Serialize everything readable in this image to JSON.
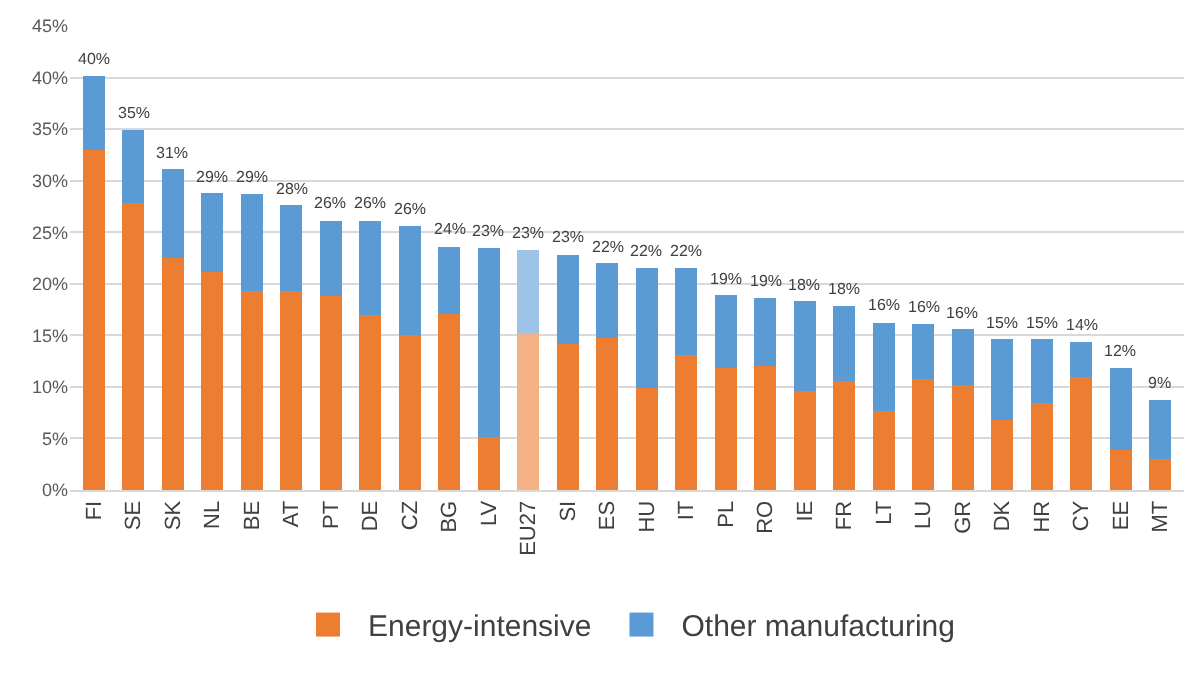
{
  "chart_data": {
    "type": "bar",
    "stacked": true,
    "categories": [
      "FI",
      "SE",
      "SK",
      "NL",
      "BE",
      "AT",
      "PT",
      "DE",
      "CZ",
      "BG",
      "LV",
      "EU27",
      "SI",
      "ES",
      "HU",
      "IT",
      "PL",
      "RO",
      "IE",
      "FR",
      "LT",
      "LU",
      "GR",
      "DK",
      "HR",
      "CY",
      "EE",
      "MT"
    ],
    "series": [
      {
        "name": "Energy-intensive",
        "color": "#ed7d31",
        "colors": [
          null,
          null,
          null,
          null,
          null,
          null,
          null,
          null,
          null,
          null,
          null,
          "#f4b183",
          null,
          null,
          null,
          null,
          null,
          null,
          null,
          null,
          null,
          null,
          null,
          null,
          null,
          null,
          null,
          null
        ],
        "values": [
          33,
          27.8,
          22.5,
          21.1,
          19.3,
          19.3,
          18.8,
          17,
          15,
          17.1,
          5.1,
          15.2,
          14.2,
          14.7,
          9.9,
          13.1,
          11.8,
          12,
          9.6,
          10.6,
          7.7,
          10.8,
          10.2,
          6.8,
          8.4,
          11,
          3.9,
          3
        ]
      },
      {
        "name": "Other manufacturing",
        "color": "#5b9bd5",
        "colors": [
          null,
          null,
          null,
          null,
          null,
          null,
          null,
          null,
          null,
          null,
          null,
          "#9dc3e6",
          null,
          null,
          null,
          null,
          null,
          null,
          null,
          null,
          null,
          null,
          null,
          null,
          null,
          null,
          null,
          null
        ],
        "values": [
          7.2,
          7.1,
          8.6,
          7.7,
          9.4,
          8.3,
          7.3,
          9.1,
          10.6,
          6.5,
          18.4,
          8.1,
          8.6,
          7.3,
          11.6,
          8.4,
          7.1,
          6.6,
          8.7,
          7.2,
          8.5,
          5.3,
          5.4,
          7.8,
          6.2,
          3.4,
          7.9,
          5.7
        ]
      }
    ],
    "totals": [
      "40%",
      "35%",
      "31%",
      "29%",
      "29%",
      "28%",
      "26%",
      "26%",
      "26%",
      "24%",
      "23%",
      "23%",
      "23%",
      "22%",
      "22%",
      "22%",
      "19%",
      "19%",
      "18%",
      "18%",
      "16%",
      "16%",
      "16%",
      "15%",
      "15%",
      "14%",
      "12%",
      "9%"
    ],
    "ylim": [
      0,
      45
    ],
    "yticks": [
      {
        "value": 0,
        "label": "0%"
      },
      {
        "value": 5,
        "label": "5%"
      },
      {
        "value": 10,
        "label": "10%"
      },
      {
        "value": 15,
        "label": "15%"
      },
      {
        "value": 20,
        "label": "20%"
      },
      {
        "value": 25,
        "label": "25%"
      },
      {
        "value": 30,
        "label": "30%"
      },
      {
        "value": 35,
        "label": "35%"
      },
      {
        "value": 40,
        "label": "40%"
      },
      {
        "value": 45,
        "label": "45%"
      }
    ],
    "grid": "y",
    "legend": "bottom"
  }
}
